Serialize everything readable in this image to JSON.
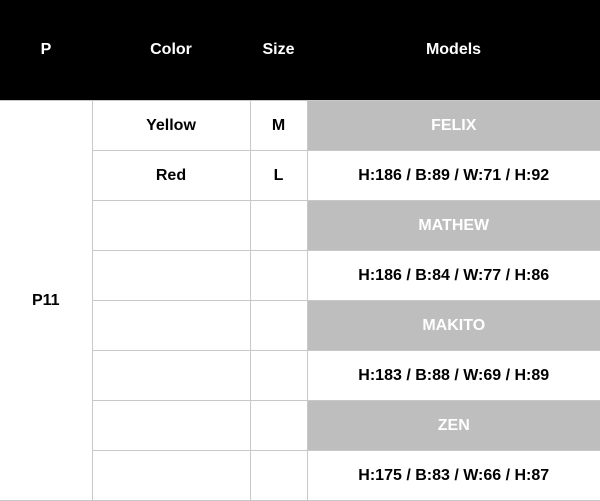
{
  "headers": [
    "P",
    "Color",
    "Size",
    "Models"
  ],
  "p_value": "P11",
  "rows": [
    {
      "color": "Yellow",
      "size": "M",
      "model": "FELIX",
      "type": "name"
    },
    {
      "color": "Red",
      "size": "L",
      "model": "H:186 / B:89 / W:71 / H:92",
      "type": "measure"
    },
    {
      "color": "",
      "size": "",
      "model": "MATHEW",
      "type": "name"
    },
    {
      "color": "",
      "size": "",
      "model": "H:186 / B:84 / W:77 / H:86",
      "type": "measure"
    },
    {
      "color": "",
      "size": "",
      "model": "MAKITO",
      "type": "name"
    },
    {
      "color": "",
      "size": "",
      "model": "H:183 / B:88 / W:69 / H:89",
      "type": "measure"
    },
    {
      "color": "",
      "size": "",
      "model": "ZEN",
      "type": "name"
    },
    {
      "color": "",
      "size": "",
      "model": "H:175 / B:83 / W:66 / H:87",
      "type": "measure"
    }
  ],
  "colors": {
    "header_bg": "#000000",
    "name_row_bg": "#bebebe",
    "border": "#c8c8c8"
  }
}
